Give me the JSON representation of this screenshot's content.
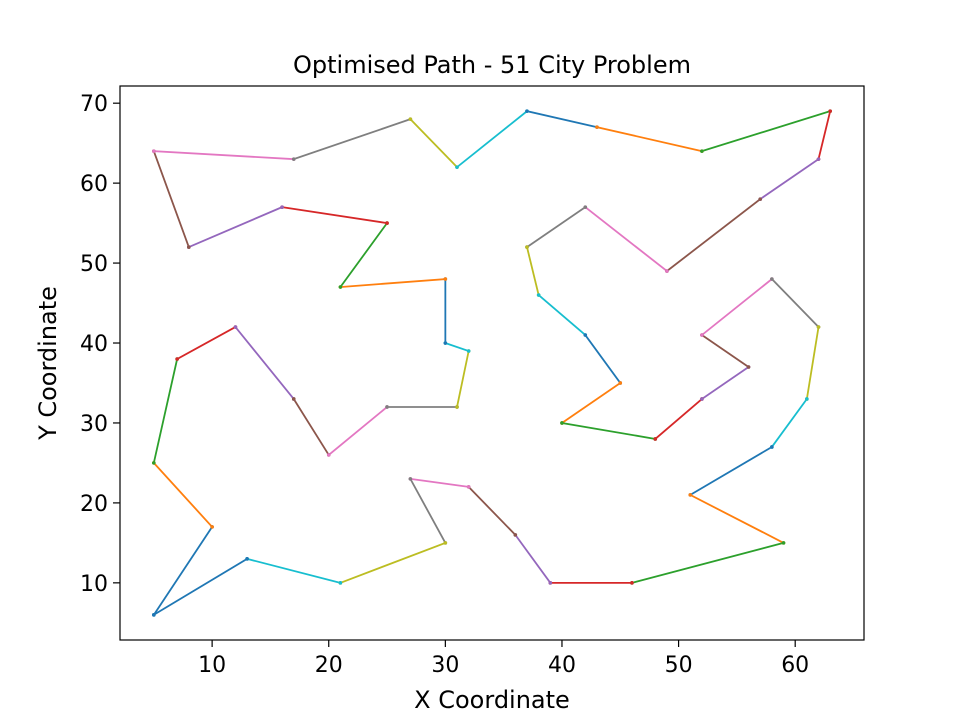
{
  "chart_data": {
    "type": "line",
    "title": "Optimised Path - 51 City Problem",
    "xlabel": "X Coordinate",
    "ylabel": "Y Coordinate",
    "xlim": [
      2.1,
      65.9
    ],
    "ylim": [
      2.85,
      72.15
    ],
    "xticks": [
      10,
      20,
      30,
      40,
      50,
      60
    ],
    "yticks": [
      10,
      20,
      30,
      40,
      50,
      60,
      70
    ],
    "grid": false,
    "legend": "none",
    "colors": [
      "#1f77b4",
      "#ff7f0e",
      "#2ca02c",
      "#d62728",
      "#9467bd",
      "#8c564b",
      "#e377c2",
      "#7f7f7f",
      "#bcbd22",
      "#17becf"
    ],
    "path": [
      [
        5,
        6
      ],
      [
        10,
        17
      ],
      [
        5,
        25
      ],
      [
        7,
        38
      ],
      [
        12,
        42
      ],
      [
        17,
        33
      ],
      [
        20,
        26
      ],
      [
        25,
        32
      ],
      [
        31,
        32
      ],
      [
        32,
        39
      ],
      [
        30,
        40
      ],
      [
        30,
        48
      ],
      [
        21,
        47
      ],
      [
        25,
        55
      ],
      [
        16,
        57
      ],
      [
        8,
        52
      ],
      [
        5,
        64
      ],
      [
        17,
        63
      ],
      [
        27,
        68
      ],
      [
        31,
        62
      ],
      [
        37,
        69
      ],
      [
        43,
        67
      ],
      [
        52,
        64
      ],
      [
        63,
        69
      ],
      [
        62,
        63
      ],
      [
        57,
        58
      ],
      [
        49,
        49
      ],
      [
        42,
        57
      ],
      [
        37,
        52
      ],
      [
        38,
        46
      ],
      [
        42,
        41
      ],
      [
        45,
        35
      ],
      [
        40,
        30
      ],
      [
        48,
        28
      ],
      [
        52,
        33
      ],
      [
        56,
        37
      ],
      [
        52,
        41
      ],
      [
        58,
        48
      ],
      [
        62,
        42
      ],
      [
        61,
        33
      ],
      [
        58,
        27
      ],
      [
        51,
        21
      ],
      [
        59,
        15
      ],
      [
        46,
        10
      ],
      [
        39,
        10
      ],
      [
        36,
        16
      ],
      [
        32,
        22
      ],
      [
        27,
        23
      ],
      [
        30,
        15
      ],
      [
        21,
        10
      ],
      [
        13,
        13
      ],
      [
        5,
        6
      ]
    ]
  }
}
